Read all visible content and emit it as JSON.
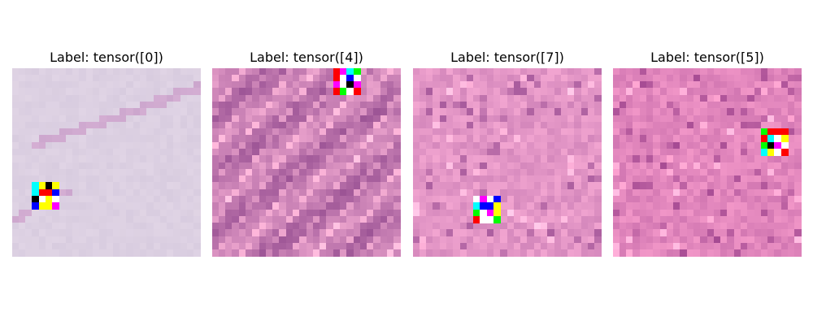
{
  "panels": [
    {
      "title": "Label: tensor([0])",
      "base": "#dcd0e2",
      "texture": "dim",
      "patch": [
        [
          "#00ffff",
          "#ffff00",
          "#000000",
          "#ffff00"
        ],
        [
          "#00ffff",
          "#ff0000",
          "#ff0000",
          "#0000ff"
        ],
        [
          "#000000",
          "#ffffff",
          "#ffff00",
          "#ffffff"
        ],
        [
          "#0000ff",
          "#ffff00",
          "#ffff00",
          "#ff00ff"
        ]
      ]
    },
    {
      "title": "Label: tensor([4])",
      "base": "#c27ab0",
      "texture": "streaked",
      "patch": [
        [
          "#ff0000",
          "#ff00ff",
          "#00ffff",
          "#00ff00"
        ],
        [
          "#ff0000",
          "#ffffff",
          "#0000ff",
          "#ffffff"
        ],
        [
          "#ff00ff",
          "#ffffff",
          "#000000",
          "#ff00ff"
        ],
        [
          "#ff0000",
          "#00ff00",
          "#ffffff",
          "#ff0000"
        ]
      ]
    },
    {
      "title": "Label: tensor([7])",
      "base": "#e396c6",
      "texture": "mottled",
      "patch": [
        [
          "#ffffff",
          "#ff00ff",
          "#ffffff",
          "#0000ff"
        ],
        [
          "#00ffff",
          "#0000ff",
          "#0000ff",
          "#ffff00"
        ],
        [
          "#00ff00",
          "#ffffff",
          "#ff00ff",
          "#ffff00"
        ],
        [
          "#ff0000",
          "#ffffff",
          "#ffffff",
          "#00ff00"
        ]
      ]
    },
    {
      "title": "Label: tensor([5])",
      "base": "#e287bd",
      "texture": "mottled",
      "patch": [
        [
          "#00ff00",
          "#ff0000",
          "#ff0000",
          "#ff0000"
        ],
        [
          "#ff0000",
          "#00ffff",
          "#ffffff",
          "#ffff00"
        ],
        [
          "#00ff00",
          "#000000",
          "#ff00ff",
          "#ffffff"
        ],
        [
          "#00ffff",
          "#ffff00",
          "#ffffff",
          "#ff0000"
        ]
      ]
    }
  ]
}
